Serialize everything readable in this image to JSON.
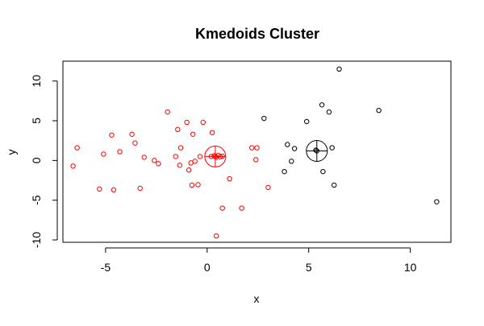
{
  "chart_data": {
    "type": "scatter",
    "title": "Kmedoids Cluster",
    "xlabel": "x",
    "ylabel": "y",
    "xlim": [
      -7.1,
      12.0
    ],
    "ylim": [
      -10.3,
      12.5
    ],
    "x_ticks": [
      -5,
      0,
      5,
      10
    ],
    "y_ticks": [
      -10,
      -5,
      0,
      5,
      10
    ],
    "x_tick_labels": [
      "-5",
      "0",
      "5",
      "10"
    ],
    "y_tick_labels": [
      "-10",
      "-5",
      "0",
      "5",
      "10"
    ],
    "grid": false,
    "legend": "none",
    "series": [
      {
        "color": "#ff0000",
        "points": [
          [
            -6.6,
            -0.7
          ],
          [
            -6.4,
            1.6
          ],
          [
            -5.3,
            -3.6
          ],
          [
            -5.1,
            0.8
          ],
          [
            -4.7,
            3.2
          ],
          [
            -4.6,
            -3.7
          ],
          [
            -4.3,
            1.1
          ],
          [
            -3.7,
            3.3
          ],
          [
            -3.55,
            2.2
          ],
          [
            -3.3,
            -3.5
          ],
          [
            -3.1,
            0.4
          ],
          [
            -2.6,
            0.0
          ],
          [
            -2.4,
            -0.4
          ],
          [
            -1.95,
            6.1
          ],
          [
            -1.55,
            0.5
          ],
          [
            -1.45,
            3.9
          ],
          [
            -1.35,
            -0.6
          ],
          [
            -1.3,
            1.6
          ],
          [
            -1.0,
            4.8
          ],
          [
            -0.9,
            -1.2
          ],
          [
            -0.8,
            -0.3
          ],
          [
            -0.7,
            3.3
          ],
          [
            -0.75,
            -3.1
          ],
          [
            -0.6,
            -0.1
          ],
          [
            -0.45,
            -3.05
          ],
          [
            -0.35,
            0.5
          ],
          [
            -0.2,
            4.8
          ],
          [
            0.25,
            3.5
          ],
          [
            0.45,
            -9.5
          ],
          [
            0.75,
            -6.0
          ],
          [
            1.1,
            -2.3
          ],
          [
            1.7,
            -6.0
          ],
          [
            2.2,
            1.6
          ],
          [
            2.4,
            0.1
          ],
          [
            2.45,
            1.6
          ],
          [
            3.0,
            -3.4
          ]
        ],
        "medoid": [
          0.4,
          0.5
        ],
        "medoid_pts": [
          [
            0.2,
            0.5
          ],
          [
            0.35,
            0.6
          ],
          [
            0.45,
            0.4
          ],
          [
            0.55,
            0.65
          ],
          [
            0.65,
            0.45
          ],
          [
            0.75,
            0.55
          ]
        ]
      },
      {
        "color": "#000000",
        "points": [
          [
            2.8,
            5.3
          ],
          [
            3.8,
            -1.4
          ],
          [
            3.95,
            2.0
          ],
          [
            4.15,
            -0.1
          ],
          [
            4.3,
            1.5
          ],
          [
            4.9,
            4.9
          ],
          [
            5.35,
            1.3
          ],
          [
            5.65,
            7.0
          ],
          [
            5.7,
            -1.4
          ],
          [
            6.0,
            6.1
          ],
          [
            6.15,
            1.6
          ],
          [
            6.25,
            -3.1
          ],
          [
            6.5,
            11.5
          ],
          [
            8.45,
            6.3
          ],
          [
            11.3,
            -5.2
          ]
        ],
        "medoid": [
          5.4,
          1.2
        ],
        "medoid_pts": []
      }
    ]
  }
}
